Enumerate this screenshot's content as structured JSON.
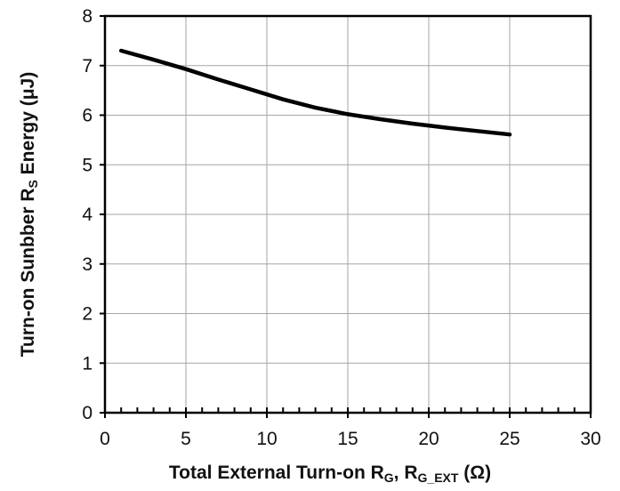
{
  "chart_data": {
    "type": "line",
    "title": "",
    "xlabel": {
      "prefix": "Total External Turn-on R",
      "sub1": "G",
      "middle": ", R",
      "sub2": "G_EXT",
      "suffix": " (Ω)"
    },
    "ylabel": {
      "prefix": "Turn-on Sunbber R",
      "sub": "S",
      "suffix": " Energy (μJ)"
    },
    "xlim": [
      0,
      30
    ],
    "ylim": [
      0,
      8
    ],
    "xticks": [
      "0",
      "5",
      "10",
      "15",
      "20",
      "25",
      "30"
    ],
    "yticks": [
      "0",
      "1",
      "2",
      "3",
      "4",
      "5",
      "6",
      "7",
      "8"
    ],
    "grid": true,
    "legend": "none",
    "series": [
      {
        "color": "#000000",
        "x": [
          1,
          3,
          5,
          7,
          9,
          11,
          13,
          15,
          17,
          19,
          21,
          23,
          25
        ],
        "y": [
          7.3,
          7.12,
          6.93,
          6.72,
          6.52,
          6.32,
          6.15,
          6.02,
          5.92,
          5.83,
          5.75,
          5.68,
          5.61
        ]
      }
    ]
  }
}
